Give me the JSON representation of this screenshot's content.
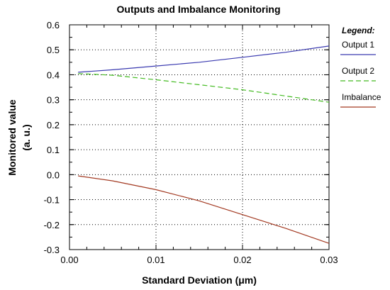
{
  "chart_data": {
    "type": "line",
    "title": "Outputs and Imbalance Monitoring",
    "xlabel": "Standard Deviation (μm)",
    "ylabel_line1": "Monitored value",
    "ylabel_line2": "(a. u.)",
    "xlim": [
      0.0,
      0.03
    ],
    "ylim": [
      -0.3,
      0.6
    ],
    "x_ticks": [
      0.0,
      0.01,
      0.02,
      0.03
    ],
    "x_tick_labels": [
      "0.00",
      "0.01",
      "0.02",
      "0.03"
    ],
    "y_ticks": [
      -0.3,
      -0.2,
      -0.1,
      0.0,
      0.1,
      0.2,
      0.3,
      0.4,
      0.5,
      0.6
    ],
    "y_tick_labels": [
      "-0.3",
      "-0.2",
      "-0.1",
      "0.0",
      "0.1",
      "0.2",
      "0.3",
      "0.4",
      "0.5",
      "0.6"
    ],
    "grid": true,
    "legend_title": "Legend:",
    "legend_position": "right",
    "series": [
      {
        "name": "Output 1",
        "color": "#3a3ab0",
        "dash": "solid",
        "x": [
          0.001,
          0.005,
          0.01,
          0.015,
          0.02,
          0.025,
          0.03
        ],
        "y": [
          0.41,
          0.42,
          0.435,
          0.45,
          0.47,
          0.49,
          0.515
        ]
      },
      {
        "name": "Output 2",
        "color": "#44bb22",
        "dash": "dashed",
        "x": [
          0.001,
          0.005,
          0.01,
          0.015,
          0.02,
          0.025,
          0.03
        ],
        "y": [
          0.405,
          0.398,
          0.38,
          0.36,
          0.34,
          0.315,
          0.29
        ]
      },
      {
        "name": "Imbalance",
        "color": "#a33a22",
        "dash": "solid",
        "x": [
          0.001,
          0.005,
          0.01,
          0.015,
          0.02,
          0.025,
          0.03
        ],
        "y": [
          -0.005,
          -0.025,
          -0.06,
          -0.105,
          -0.16,
          -0.215,
          -0.275
        ]
      }
    ]
  }
}
